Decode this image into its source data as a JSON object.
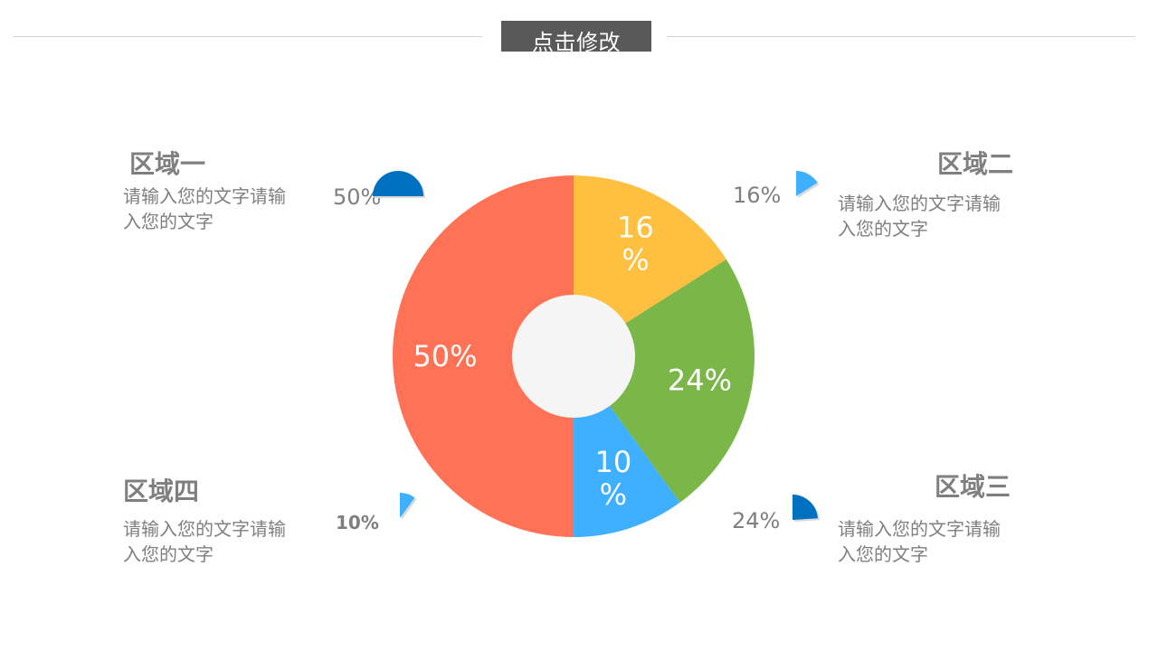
{
  "header": {
    "title": "点击修改"
  },
  "regions": [
    {
      "title": "区域一",
      "desc": "请输入您的文字请输入您的文字",
      "percent": "50%",
      "value": 50,
      "color": "#0070c0"
    },
    {
      "title": "区域二",
      "desc": "请输入您的文字请输入您的文字",
      "percent": "16%",
      "value": 16,
      "color": "#3eb0ff"
    },
    {
      "title": "区域三",
      "desc": "请输入您的文字请输入您的文字",
      "percent": "24%",
      "value": 24,
      "color": "#0070c0"
    },
    {
      "title": "区域四",
      "desc": "请输入您的文字请输入您的文字",
      "percent": "10%",
      "value": 10,
      "color": "#3eb0ff"
    }
  ],
  "chart_data": {
    "type": "pie",
    "categories": [
      "区域二",
      "区域三",
      "区域四",
      "区域一"
    ],
    "values": [
      16,
      24,
      10,
      50
    ],
    "labels": [
      "16\n%",
      "24%",
      "10\n%",
      "50%"
    ],
    "colors": [
      "#ffbf40",
      "#7ab648",
      "#3eb0ff",
      "#ff7255"
    ],
    "donut": true,
    "hole_color": "#f5f5f5"
  }
}
